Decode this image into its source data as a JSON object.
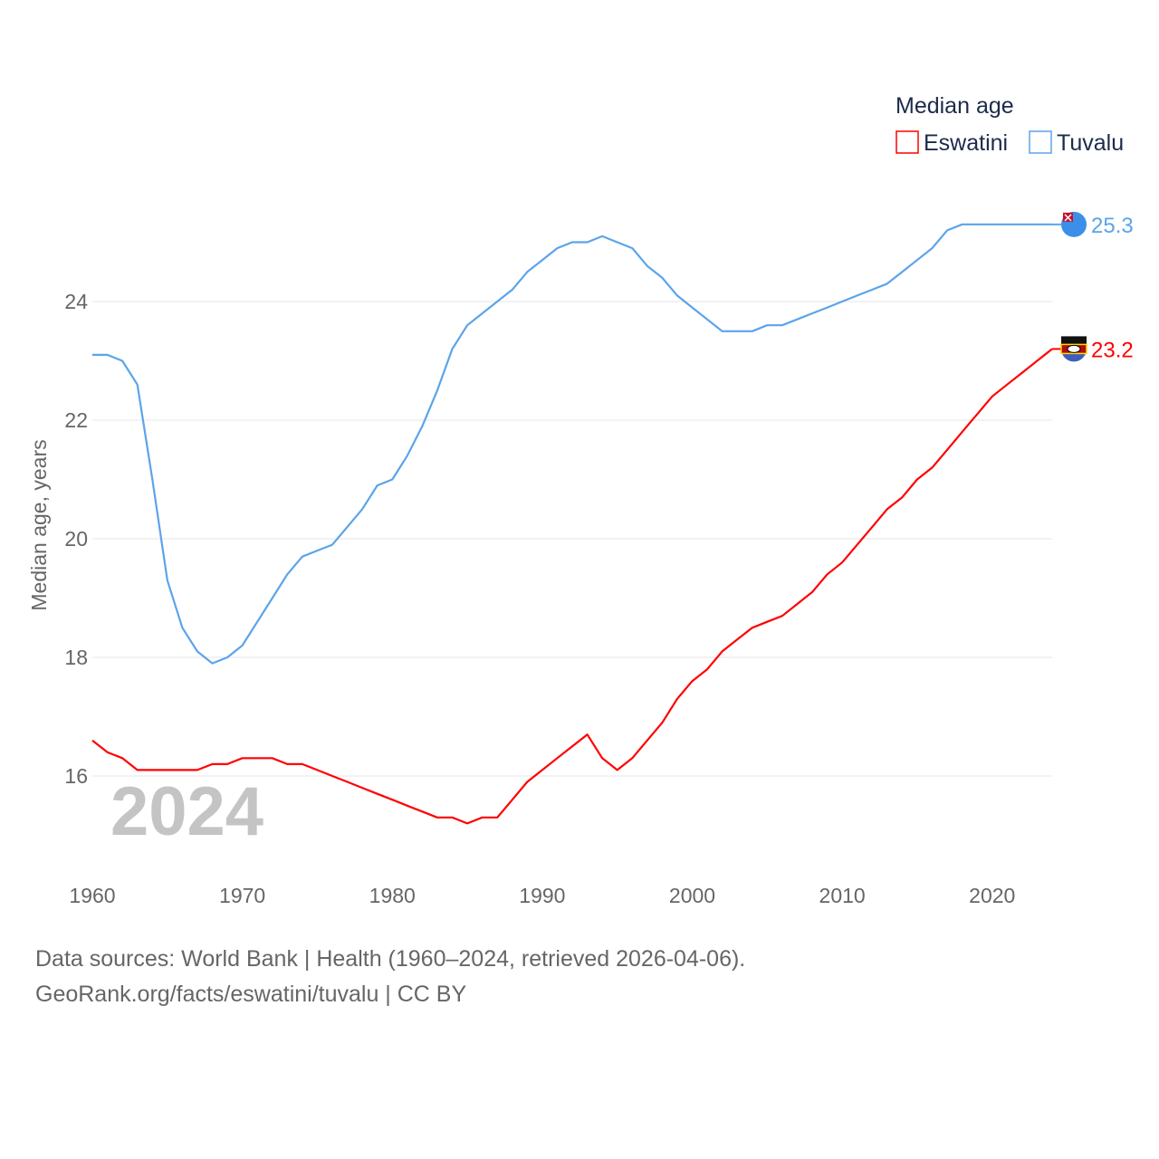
{
  "chart_data": {
    "type": "line",
    "title": "",
    "ylabel": "Median age, years",
    "xlabel": "",
    "xlim": [
      1960,
      2024
    ],
    "ylim": [
      14.6,
      25.8
    ],
    "yticks": [
      16,
      18,
      20,
      22,
      24
    ],
    "xticks": [
      1960,
      1970,
      1980,
      1990,
      2000,
      2010,
      2020
    ],
    "grid": true,
    "year_label": "2024",
    "legend": {
      "title": "Median age",
      "placement": "top-right"
    },
    "x": [
      1960,
      1961,
      1962,
      1963,
      1964,
      1965,
      1966,
      1967,
      1968,
      1969,
      1970,
      1971,
      1972,
      1973,
      1974,
      1975,
      1976,
      1977,
      1978,
      1979,
      1980,
      1981,
      1982,
      1983,
      1984,
      1985,
      1986,
      1987,
      1988,
      1989,
      1990,
      1991,
      1992,
      1993,
      1994,
      1995,
      1996,
      1997,
      1998,
      1999,
      2000,
      2001,
      2002,
      2003,
      2004,
      2005,
      2006,
      2007,
      2008,
      2009,
      2010,
      2011,
      2012,
      2013,
      2014,
      2015,
      2016,
      2017,
      2018,
      2019,
      2020,
      2021,
      2022,
      2023,
      2024
    ],
    "series": [
      {
        "name": "Eswatini",
        "color": "#ff0000",
        "end_label": "23.2",
        "values": [
          16.6,
          16.4,
          16.3,
          16.1,
          16.1,
          16.1,
          16.1,
          16.1,
          16.2,
          16.2,
          16.3,
          16.3,
          16.3,
          16.2,
          16.2,
          16.1,
          16.0,
          15.9,
          15.8,
          15.7,
          15.6,
          15.5,
          15.4,
          15.3,
          15.3,
          15.2,
          15.3,
          15.3,
          15.6,
          15.9,
          16.1,
          16.3,
          16.5,
          16.7,
          16.3,
          16.1,
          16.3,
          16.6,
          16.9,
          17.3,
          17.6,
          17.8,
          18.1,
          18.3,
          18.5,
          18.6,
          18.7,
          18.9,
          19.1,
          19.4,
          19.6,
          19.9,
          20.2,
          20.5,
          20.7,
          21.0,
          21.2,
          21.5,
          21.8,
          22.1,
          22.4,
          22.6,
          22.8,
          23.0,
          23.2
        ]
      },
      {
        "name": "Tuvalu",
        "color": "#5ba4ea",
        "end_label": "25.3",
        "values": [
          23.1,
          23.1,
          23.0,
          22.6,
          21.0,
          19.3,
          18.5,
          18.1,
          17.9,
          18.0,
          18.2,
          18.6,
          19.0,
          19.4,
          19.7,
          19.8,
          19.9,
          20.2,
          20.5,
          20.9,
          21.0,
          21.4,
          21.9,
          22.5,
          23.2,
          23.6,
          23.8,
          24.0,
          24.2,
          24.5,
          24.7,
          24.9,
          25.0,
          25.0,
          25.1,
          25.0,
          24.9,
          24.6,
          24.4,
          24.1,
          23.9,
          23.7,
          23.5,
          23.5,
          23.5,
          23.6,
          23.6,
          23.7,
          23.8,
          23.9,
          24.0,
          24.1,
          24.2,
          24.3,
          24.5,
          24.7,
          24.9,
          25.2,
          25.3,
          25.3,
          25.3,
          25.3,
          25.3,
          25.3,
          25.3
        ]
      }
    ]
  },
  "footer": {
    "line1": "Data sources: World Bank | Health (1960–2024, retrieved 2026-04-06).",
    "line2": "GeoRank.org/facts/eswatini/tuvalu | CC BY"
  }
}
